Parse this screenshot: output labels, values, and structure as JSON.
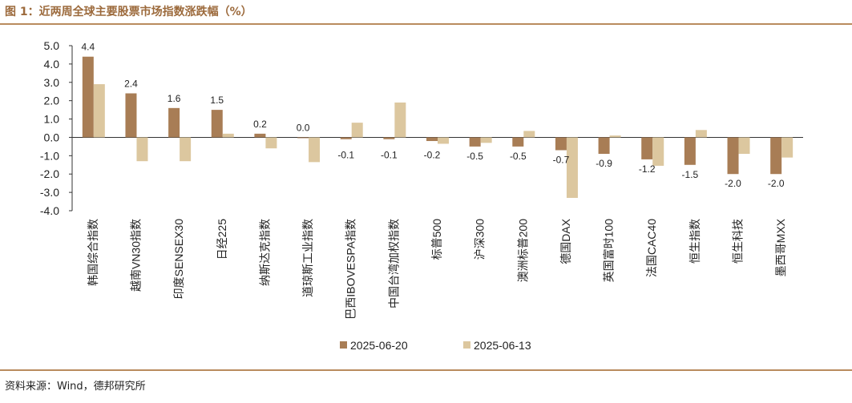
{
  "title": "图 1：近两周全球主要股票市场指数涨跌幅（%）",
  "source": "资料来源：Wind，德邦研究所",
  "colors": {
    "series1": "#a87d55",
    "series2": "#dcc79f",
    "rule": "#b98b5e",
    "title": "#9c6a3c"
  },
  "chart_data": {
    "type": "bar",
    "ylim": [
      -4.0,
      5.0
    ],
    "yticks": [
      "5.0",
      "4.0",
      "3.0",
      "2.0",
      "1.0",
      "0.0",
      "-1.0",
      "-2.0",
      "-3.0",
      "-4.0"
    ],
    "ytick_values": [
      5,
      4,
      3,
      2,
      1,
      0,
      -1,
      -2,
      -3,
      -4
    ],
    "categories": [
      "韩国综合指数",
      "越南VN30指数",
      "印度SENSEX30",
      "日经225",
      "纳斯达克指数",
      "道琼斯工业指数",
      "巴西IBOVESPA指数",
      "中国台湾加权指数",
      "标普500",
      "沪深300",
      "澳洲标普200",
      "德国DAX",
      "英国富时100",
      "法国CAC40",
      "恒生指数",
      "恒生科技",
      "墨西哥MXX"
    ],
    "series": [
      {
        "name": "2025-06-20",
        "values": [
          4.4,
          2.4,
          1.6,
          1.5,
          0.2,
          0.0,
          -0.1,
          -0.1,
          -0.2,
          -0.5,
          -0.5,
          -0.7,
          -0.9,
          -1.2,
          -1.5,
          -2.0,
          -2.0
        ]
      },
      {
        "name": "2025-06-13",
        "values": [
          2.9,
          -1.3,
          -1.3,
          0.2,
          -0.6,
          -1.35,
          0.8,
          1.9,
          -0.35,
          -0.3,
          0.35,
          -3.3,
          0.1,
          -1.55,
          0.4,
          -0.9,
          -1.1
        ]
      }
    ],
    "data_labels": [
      "4.4",
      "2.4",
      "1.6",
      "1.5",
      "0.2",
      "0.0",
      "-0.1",
      "-0.1",
      "-0.2",
      "-0.5",
      "-0.5",
      "-0.7",
      "-0.9",
      "-1.2",
      "-1.5",
      "-2.0",
      "-2.0"
    ],
    "legend": [
      "2025-06-20",
      "2025-06-13"
    ],
    "legend_position": "bottom",
    "grid": false
  }
}
